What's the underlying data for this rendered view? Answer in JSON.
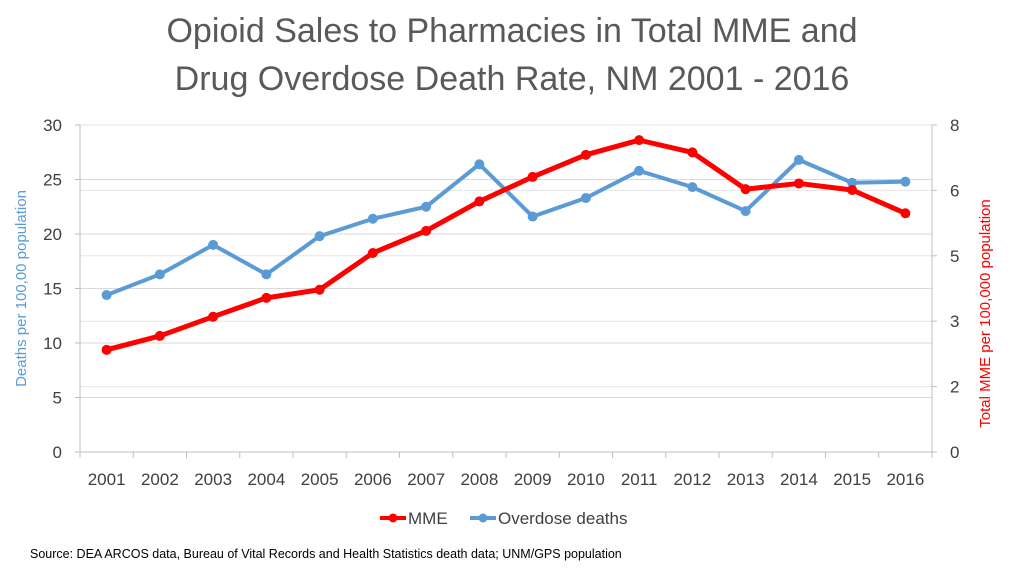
{
  "chart_data": {
    "type": "line",
    "title_lines": [
      "Opioid Sales to Pharmacies in Total MME and",
      "Drug Overdose Death Rate, NM 2001 - 2016"
    ],
    "categories": [
      "2001",
      "2002",
      "2003",
      "2004",
      "2005",
      "2006",
      "2007",
      "2008",
      "2009",
      "2010",
      "2011",
      "2012",
      "2013",
      "2014",
      "2015",
      "2016"
    ],
    "ylabel_left": "Deaths per 100,00 population",
    "ylabel_right": "Total MME per 100,000 population",
    "left_axis": {
      "range": [
        0,
        30
      ],
      "ticks": [
        "0",
        "5",
        "10",
        "15",
        "20",
        "25",
        "30"
      ]
    },
    "right_axis": {
      "range": [
        0,
        8
      ],
      "ticks": [
        "0",
        "2",
        "3",
        "5",
        "6",
        "8"
      ],
      "tick_values": [
        0,
        1.6,
        3.2,
        4.8,
        6.4,
        8
      ]
    },
    "grid": true,
    "legend_position": "bottom",
    "series": [
      {
        "name": "MME",
        "axis": "right",
        "color": "#ff0000",
        "values": [
          2.5,
          2.84,
          3.31,
          3.77,
          3.97,
          4.87,
          5.41,
          6.13,
          6.73,
          7.27,
          7.63,
          7.33,
          6.43,
          6.57,
          6.41,
          5.84
        ]
      },
      {
        "name": "Overdose deaths",
        "axis": "left",
        "color": "#5b9bd5",
        "values": [
          14.4,
          16.3,
          19.0,
          16.3,
          19.8,
          21.4,
          22.5,
          26.4,
          21.6,
          23.3,
          25.8,
          24.3,
          22.1,
          26.8,
          24.7,
          24.8
        ]
      }
    ],
    "source_note": "Source: DEA ARCOS data, Bureau of Vital Records and Health Statistics death data; UNM/GPS population"
  }
}
